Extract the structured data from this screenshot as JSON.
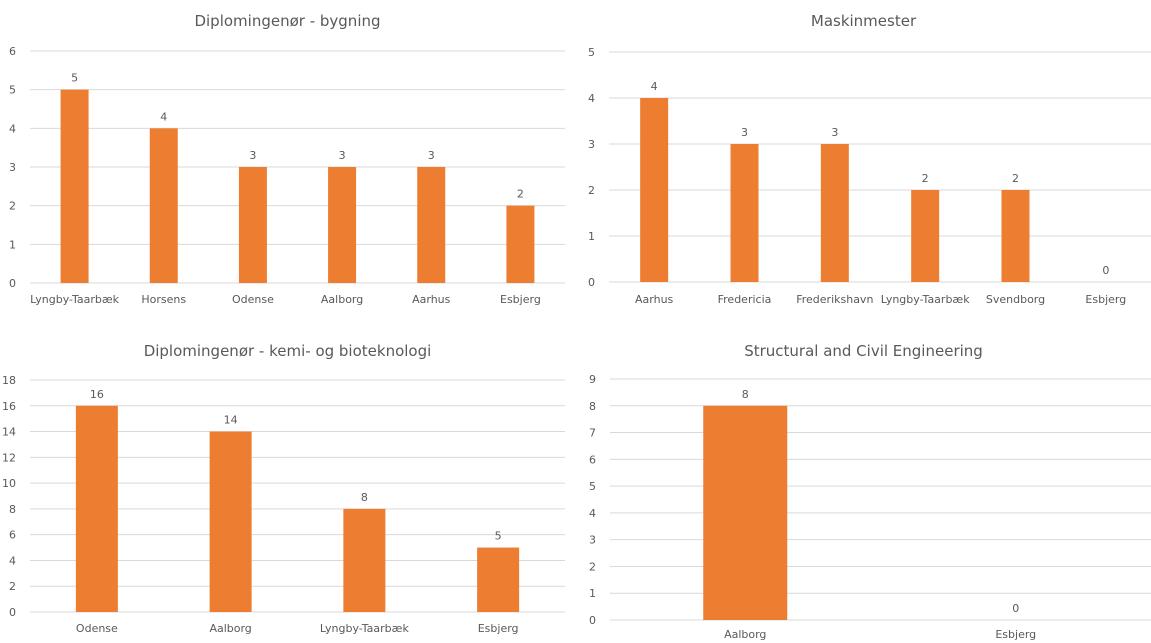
{
  "colors": {
    "bar": "#ED7D31",
    "grid": "#D9D9D9",
    "text": "#595959"
  },
  "chart_data": [
    {
      "type": "bar",
      "title": "Diplomingenør - bygning",
      "categories": [
        "Lyngby-Taarbæk",
        "Horsens",
        "Odense",
        "Aalborg",
        "Aarhus",
        "Esbjerg"
      ],
      "values": [
        5,
        4,
        3,
        3,
        3,
        2
      ],
      "yticks": [
        0,
        1,
        2,
        3,
        4,
        5,
        6
      ],
      "ylim": [
        0,
        6
      ],
      "grid": true,
      "data_labels": true
    },
    {
      "type": "bar",
      "title": "Maskinmester",
      "categories": [
        "Aarhus",
        "Fredericia",
        "Frederikshavn",
        "Lyngby-Taarbæk",
        "Svendborg",
        "Esbjerg"
      ],
      "values": [
        4,
        3,
        3,
        2,
        2,
        0
      ],
      "yticks": [
        0,
        1,
        2,
        3,
        4,
        5
      ],
      "ylim": [
        0,
        5
      ],
      "grid": true,
      "data_labels": true
    },
    {
      "type": "bar",
      "title": "Diplomingenør - kemi- og bioteknologi",
      "categories": [
        "Odense",
        "Aalborg",
        "Lyngby-Taarbæk",
        "Esbjerg"
      ],
      "values": [
        16,
        14,
        8,
        5
      ],
      "yticks": [
        0,
        2,
        4,
        6,
        8,
        10,
        12,
        14,
        16,
        18
      ],
      "ylim": [
        0,
        18
      ],
      "grid": true,
      "data_labels": true
    },
    {
      "type": "bar",
      "title": "Structural and Civil Engineering",
      "categories": [
        "Aalborg",
        "Esbjerg"
      ],
      "values": [
        8,
        0
      ],
      "yticks": [
        0,
        1,
        2,
        3,
        4,
        5,
        6,
        7,
        8,
        9
      ],
      "ylim": [
        0,
        9
      ],
      "grid": true,
      "data_labels": true
    }
  ]
}
